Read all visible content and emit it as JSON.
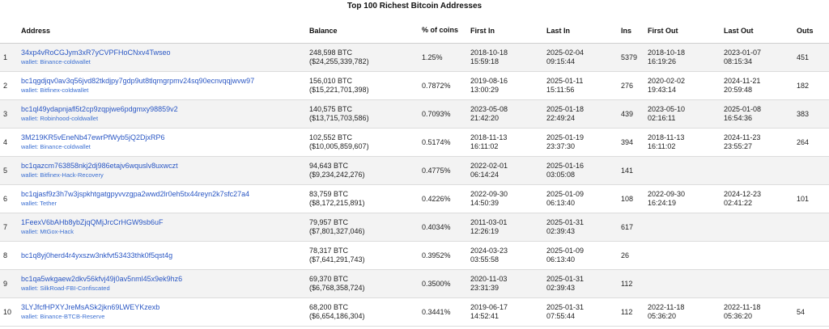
{
  "title": "Top 100 Richest Bitcoin Addresses",
  "columns": {
    "rank": "",
    "address": "Address",
    "balance": "Balance",
    "pct": "% of coins",
    "first_in": "First In",
    "last_in": "Last In",
    "ins": "Ins",
    "first_out": "First Out",
    "last_out": "Last Out",
    "outs": "Outs"
  },
  "rows": [
    {
      "rank": "1",
      "address": "34xp4vRoCGJym3xR7yCVPFHoCNxv4Twseo",
      "wallet": "wallet: Binance-coldwallet",
      "balance_btc": "248,598 BTC",
      "balance_usd": "($24,255,339,782)",
      "pct": "1.25%",
      "first_in_date": "2018-10-18",
      "first_in_time": "15:59:18",
      "last_in_date": "2025-02-04",
      "last_in_time": "09:15:44",
      "ins": "5379",
      "first_out_date": "2018-10-18",
      "first_out_time": "16:19:26",
      "last_out_date": "2023-01-07",
      "last_out_time": "08:15:34",
      "outs": "451"
    },
    {
      "rank": "2",
      "address": "bc1qgdjqv0av3q56jvd82tkdjpy7gdp9ut8tlqmgrpmv24sq90ecnvqqjwvw97",
      "wallet": "wallet: Bitfinex-coldwallet",
      "balance_btc": "156,010 BTC",
      "balance_usd": "($15,221,701,398)",
      "pct": "0.7872%",
      "first_in_date": "2019-08-16",
      "first_in_time": "13:00:29",
      "last_in_date": "2025-01-11",
      "last_in_time": "15:11:56",
      "ins": "276",
      "first_out_date": "2020-02-02",
      "first_out_time": "19:43:14",
      "last_out_date": "2024-11-21",
      "last_out_time": "20:59:48",
      "outs": "182"
    },
    {
      "rank": "3",
      "address": "bc1ql49ydapnjafl5t2cp9zqpjwe6pdgmxy98859v2",
      "wallet": "wallet: Robinhood-coldwallet",
      "balance_btc": "140,575 BTC",
      "balance_usd": "($13,715,703,586)",
      "pct": "0.7093%",
      "first_in_date": "2023-05-08",
      "first_in_time": "21:42:20",
      "last_in_date": "2025-01-18",
      "last_in_time": "22:49:24",
      "ins": "439",
      "first_out_date": "2023-05-10",
      "first_out_time": "02:16:11",
      "last_out_date": "2025-01-08",
      "last_out_time": "16:54:36",
      "outs": "383"
    },
    {
      "rank": "4",
      "address": "3M219KR5vEneNb47ewrPfWyb5jQ2DjxRP6",
      "wallet": "wallet: Binance-coldwallet",
      "balance_btc": "102,552 BTC",
      "balance_usd": "($10,005,859,607)",
      "pct": "0.5174%",
      "first_in_date": "2018-11-13",
      "first_in_time": "16:11:02",
      "last_in_date": "2025-01-19",
      "last_in_time": "23:37:30",
      "ins": "394",
      "first_out_date": "2018-11-13",
      "first_out_time": "16:11:02",
      "last_out_date": "2024-11-23",
      "last_out_time": "23:55:27",
      "outs": "264"
    },
    {
      "rank": "5",
      "address": "bc1qazcm763858nkj2dj986etajv6wquslv8uxwczt",
      "wallet": "wallet: Bitfinex-Hack-Recovery",
      "balance_btc": "94,643 BTC",
      "balance_usd": "($9,234,242,276)",
      "pct": "0.4775%",
      "first_in_date": "2022-02-01",
      "first_in_time": "06:14:24",
      "last_in_date": "2025-01-16",
      "last_in_time": "03:05:08",
      "ins": "141",
      "first_out_date": "",
      "first_out_time": "",
      "last_out_date": "",
      "last_out_time": "",
      "outs": ""
    },
    {
      "rank": "6",
      "address": "bc1qjasf9z3h7w3jspkhtgatgpyvvzgpa2wwd2lr0eh5tx44reyn2k7sfc27a4",
      "wallet": "wallet: Tether",
      "balance_btc": "83,759 BTC",
      "balance_usd": "($8,172,215,891)",
      "pct": "0.4226%",
      "first_in_date": "2022-09-30",
      "first_in_time": "14:50:39",
      "last_in_date": "2025-01-09",
      "last_in_time": "06:13:40",
      "ins": "108",
      "first_out_date": "2022-09-30",
      "first_out_time": "16:24:19",
      "last_out_date": "2024-12-23",
      "last_out_time": "02:41:22",
      "outs": "101"
    },
    {
      "rank": "7",
      "address": "1FeexV6bAHb8ybZjqQMjJrcCrHGW9sb6uF",
      "wallet": "wallet: MtGox-Hack",
      "balance_btc": "79,957 BTC",
      "balance_usd": "($7,801,327,046)",
      "pct": "0.4034%",
      "first_in_date": "2011-03-01",
      "first_in_time": "12:26:19",
      "last_in_date": "2025-01-31",
      "last_in_time": "02:39:43",
      "ins": "617",
      "first_out_date": "",
      "first_out_time": "",
      "last_out_date": "",
      "last_out_time": "",
      "outs": ""
    },
    {
      "rank": "8",
      "address": "bc1q8yj0herd4r4yxszw3nkfvt53433thk0f5qst4g",
      "wallet": "",
      "balance_btc": "78,317 BTC",
      "balance_usd": "($7,641,291,743)",
      "pct": "0.3952%",
      "first_in_date": "2024-03-23",
      "first_in_time": "03:55:58",
      "last_in_date": "2025-01-09",
      "last_in_time": "06:13:40",
      "ins": "26",
      "first_out_date": "",
      "first_out_time": "",
      "last_out_date": "",
      "last_out_time": "",
      "outs": ""
    },
    {
      "rank": "9",
      "address": "bc1qa5wkgaew2dkv56kfvj49j0av5nml45x9ek9hz6",
      "wallet": "wallet: SilkRoad-FBI-Confiscated",
      "balance_btc": "69,370 BTC",
      "balance_usd": "($6,768,358,724)",
      "pct": "0.3500%",
      "first_in_date": "2020-11-03",
      "first_in_time": "23:31:39",
      "last_in_date": "2025-01-31",
      "last_in_time": "02:39:43",
      "ins": "112",
      "first_out_date": "",
      "first_out_time": "",
      "last_out_date": "",
      "last_out_time": "",
      "outs": ""
    },
    {
      "rank": "10",
      "address": "3LYJfcfHPXYJreMsASk2jkn69LWEYKzexb",
      "wallet": "wallet: Binance-BTCB-Reserve",
      "balance_btc": "68,200 BTC",
      "balance_usd": "($6,654,186,304)",
      "pct": "0.3441%",
      "first_in_date": "2019-06-17",
      "first_in_time": "14:52:41",
      "last_in_date": "2025-01-31",
      "last_in_time": "07:55:44",
      "ins": "112",
      "first_out_date": "2022-11-18",
      "first_out_time": "05:36:20",
      "last_out_date": "2022-11-18",
      "last_out_time": "05:36:20",
      "outs": "54"
    }
  ]
}
